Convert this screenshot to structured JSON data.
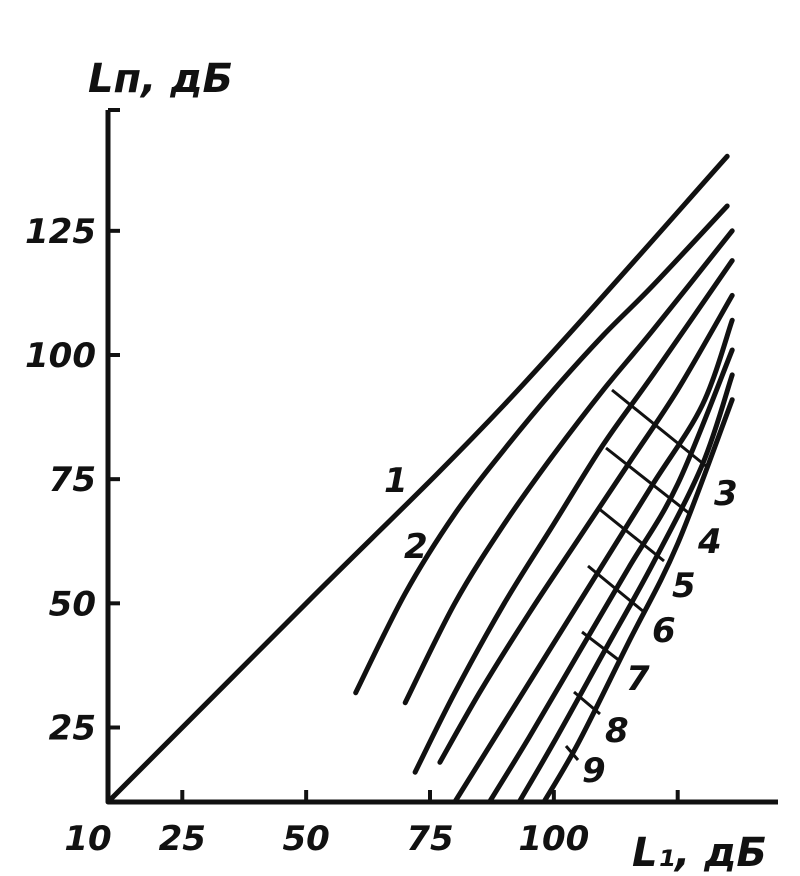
{
  "chart_data": {
    "type": "line",
    "title": "",
    "xlabel": "L₁, дБ",
    "ylabel": "Lп, дБ",
    "xlim": [
      10,
      145
    ],
    "ylim": [
      10,
      145
    ],
    "x_ticks": [
      10,
      25,
      50,
      75,
      100
    ],
    "x_tick_labels": [
      "10",
      "25",
      "50",
      "75",
      "100"
    ],
    "y_ticks": [
      25,
      50,
      75,
      100,
      125
    ],
    "y_tick_labels": [
      "25",
      "50",
      "75",
      "100",
      "125"
    ],
    "grid": false,
    "series": [
      {
        "name": "1",
        "x": [
          10,
          50,
          90,
          135
        ],
        "y": [
          10,
          50,
          90,
          140
        ]
      },
      {
        "name": "2",
        "x": [
          60,
          70,
          80,
          90,
          100,
          110,
          120,
          135
        ],
        "y": [
          32,
          52,
          68,
          81,
          93,
          104,
          114,
          130
        ]
      },
      {
        "name": "",
        "x": [
          70,
          80,
          90,
          100,
          110,
          120,
          136
        ],
        "y": [
          30,
          50,
          66,
          80,
          93,
          105,
          125
        ]
      },
      {
        "name": "",
        "x": [
          72,
          80,
          90,
          100,
          110,
          120,
          136
        ],
        "y": [
          16,
          32,
          50,
          66,
          82,
          96,
          119
        ]
      },
      {
        "name": "",
        "x": [
          77,
          85,
          95,
          105,
          115,
          125,
          136
        ],
        "y": [
          18,
          32,
          48,
          63,
          78,
          93,
          112
        ]
      },
      {
        "name": "",
        "x": [
          80,
          90,
          100,
          110,
          120,
          130,
          136
        ],
        "y": [
          10,
          26,
          42,
          58,
          74,
          90,
          107
        ]
      },
      {
        "name": "",
        "x": [
          87,
          95,
          105,
          115,
          125,
          136
        ],
        "y": [
          10,
          23,
          40,
          57,
          74,
          101
        ]
      },
      {
        "name": "",
        "x": [
          93,
          100,
          110,
          120,
          130,
          136
        ],
        "y": [
          10,
          22,
          40,
          58,
          78,
          96
        ]
      },
      {
        "name": "",
        "x": [
          98,
          105,
          115,
          125,
          136
        ],
        "y": [
          10,
          22,
          42,
          62,
          91
        ]
      }
    ],
    "annotations": [
      "1",
      "2",
      "3",
      "4",
      "5",
      "6",
      "7",
      "8",
      "9"
    ]
  }
}
